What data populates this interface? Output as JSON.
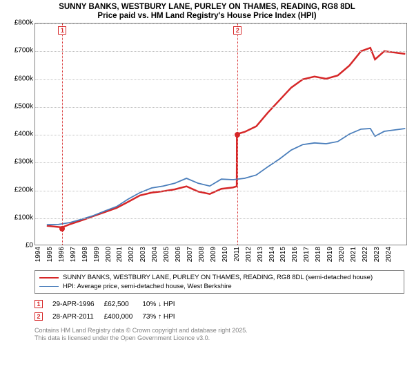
{
  "title": "SUNNY BANKS, WESTBURY LANE, PURLEY ON THAMES, READING, RG8 8DL",
  "subtitle": "Price paid vs. HM Land Registry's House Price Index (HPI)",
  "chart": {
    "type": "line",
    "ylim": [
      0,
      800000
    ],
    "ytick_step": 100000,
    "ytick_labels": [
      "£0",
      "£100k",
      "£200k",
      "£300k",
      "£400k",
      "£500k",
      "£600k",
      "£700k",
      "£800k"
    ],
    "xlim": [
      1994,
      2025.9
    ],
    "xtick_step": 1,
    "xtick_labels": [
      "1994",
      "1995",
      "1996",
      "1997",
      "1998",
      "1999",
      "2000",
      "2001",
      "2002",
      "2003",
      "2004",
      "2005",
      "2006",
      "2007",
      "2008",
      "2009",
      "2010",
      "2011",
      "2012",
      "2013",
      "2014",
      "2015",
      "2016",
      "2017",
      "2018",
      "2019",
      "2020",
      "2021",
      "2022",
      "2023",
      "2024"
    ],
    "grid_color": "#c0c0c0",
    "border_color": "#808080",
    "background_color": "#ffffff",
    "label_fontsize": 10,
    "series": [
      {
        "name": "price_paid",
        "color": "#d62728",
        "width": 2.5,
        "points": [
          [
            1995.0,
            68000
          ],
          [
            1996.33,
            62500
          ],
          [
            1997.0,
            74000
          ],
          [
            1998.0,
            88000
          ],
          [
            1999.0,
            103000
          ],
          [
            2000.0,
            118000
          ],
          [
            2001.0,
            133000
          ],
          [
            2002.0,
            155000
          ],
          [
            2003.0,
            178000
          ],
          [
            2004.0,
            188000
          ],
          [
            2005.0,
            193000
          ],
          [
            2006.0,
            200000
          ],
          [
            2007.0,
            211000
          ],
          [
            2008.0,
            192000
          ],
          [
            2009.0,
            183000
          ],
          [
            2010.0,
            202000
          ],
          [
            2011.0,
            207000
          ],
          [
            2011.32,
            211000
          ],
          [
            2011.33,
            400000
          ],
          [
            2012.0,
            408000
          ],
          [
            2013.0,
            428000
          ],
          [
            2014.0,
            478000
          ],
          [
            2015.0,
            523000
          ],
          [
            2016.0,
            568000
          ],
          [
            2017.0,
            598000
          ],
          [
            2018.0,
            608000
          ],
          [
            2019.0,
            600000
          ],
          [
            2020.0,
            612000
          ],
          [
            2021.0,
            648000
          ],
          [
            2022.0,
            700000
          ],
          [
            2022.8,
            712000
          ],
          [
            2023.2,
            670000
          ],
          [
            2024.0,
            700000
          ],
          [
            2025.8,
            690000
          ]
        ]
      },
      {
        "name": "hpi",
        "color": "#4a7ebb",
        "width": 1.8,
        "points": [
          [
            1995.0,
            72000
          ],
          [
            1996.0,
            73000
          ],
          [
            1997.0,
            80000
          ],
          [
            1998.0,
            92000
          ],
          [
            1999.0,
            105000
          ],
          [
            2000.0,
            122000
          ],
          [
            2001.0,
            138000
          ],
          [
            2002.0,
            165000
          ],
          [
            2003.0,
            188000
          ],
          [
            2004.0,
            205000
          ],
          [
            2005.0,
            212000
          ],
          [
            2006.0,
            222000
          ],
          [
            2007.0,
            240000
          ],
          [
            2008.0,
            222000
          ],
          [
            2009.0,
            212000
          ],
          [
            2010.0,
            237000
          ],
          [
            2011.0,
            235000
          ],
          [
            2012.0,
            240000
          ],
          [
            2013.0,
            252000
          ],
          [
            2014.0,
            282000
          ],
          [
            2015.0,
            310000
          ],
          [
            2016.0,
            342000
          ],
          [
            2017.0,
            362000
          ],
          [
            2018.0,
            368000
          ],
          [
            2019.0,
            365000
          ],
          [
            2020.0,
            373000
          ],
          [
            2021.0,
            400000
          ],
          [
            2022.0,
            418000
          ],
          [
            2022.8,
            420000
          ],
          [
            2023.2,
            392000
          ],
          [
            2024.0,
            410000
          ],
          [
            2025.8,
            420000
          ]
        ]
      }
    ],
    "markers": [
      {
        "n": "1",
        "x": 1996.33,
        "y": 62500,
        "color": "#d62728"
      },
      {
        "n": "2",
        "x": 2011.33,
        "y": 400000,
        "color": "#d62728"
      }
    ]
  },
  "legend": {
    "items": [
      {
        "color": "#d62728",
        "width": 2.5,
        "label": "SUNNY BANKS, WESTBURY LANE, PURLEY ON THAMES, READING, RG8 8DL (semi-detached house)"
      },
      {
        "color": "#4a7ebb",
        "width": 1.8,
        "label": "HPI: Average price, semi-detached house, West Berkshire"
      }
    ]
  },
  "transactions": [
    {
      "n": "1",
      "color": "#d62728",
      "date": "29-APR-1996",
      "price": "£62,500",
      "delta": "10% ↓ HPI"
    },
    {
      "n": "2",
      "color": "#d62728",
      "date": "28-APR-2011",
      "price": "£400,000",
      "delta": "73% ↑ HPI"
    }
  ],
  "copyright": {
    "line1": "Contains HM Land Registry data © Crown copyright and database right 2025.",
    "line2": "This data is licensed under the Open Government Licence v3.0."
  }
}
